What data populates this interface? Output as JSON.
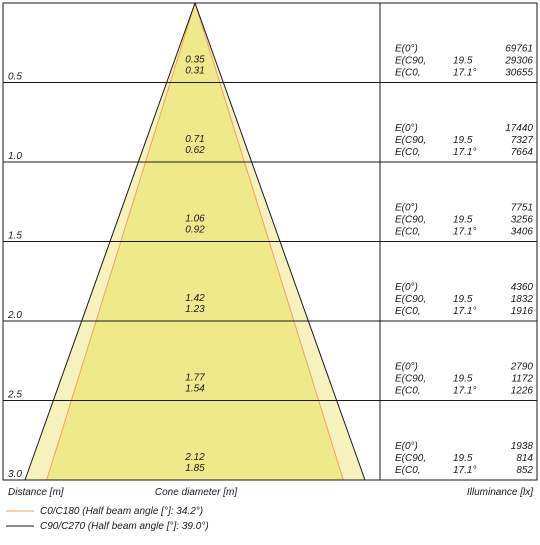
{
  "chart_data": {
    "type": "cone_diagram",
    "xlabel": "Distance [m]",
    "center_label": "Cone diameter [m]",
    "right_label": "Illuminance [lx]",
    "rows": [
      {
        "distance": "0.5",
        "diam_c90": "0.35",
        "diam_c0": "0.31",
        "e_axis": "E(0°)",
        "e_c90": "E(C90,",
        "e_c0": "E(C0,",
        "ang_c90": "19.5",
        "ang_c0": "17.1°",
        "lux_axis": "69761",
        "lux_c90": "29306",
        "lux_c0": "30655"
      },
      {
        "distance": "1.0",
        "diam_c90": "0.71",
        "diam_c0": "0.62",
        "e_axis": "E(0°)",
        "e_c90": "E(C90,",
        "e_c0": "E(C0,",
        "ang_c90": "19.5",
        "ang_c0": "17.1°",
        "lux_axis": "17440",
        "lux_c90": "7327",
        "lux_c0": "7664"
      },
      {
        "distance": "1.5",
        "diam_c90": "1.06",
        "diam_c0": "0.92",
        "e_axis": "E(0°)",
        "e_c90": "E(C90,",
        "e_c0": "E(C0,",
        "ang_c90": "19.5",
        "ang_c0": "17.1°",
        "lux_axis": "7751",
        "lux_c90": "3256",
        "lux_c0": "3406"
      },
      {
        "distance": "2.0",
        "diam_c90": "1.42",
        "diam_c0": "1.23",
        "e_axis": "E(0°)",
        "e_c90": "E(C90,",
        "e_c0": "E(C0,",
        "ang_c90": "19.5",
        "ang_c0": "17.1°",
        "lux_axis": "4360",
        "lux_c90": "1832",
        "lux_c0": "1916"
      },
      {
        "distance": "2.5",
        "diam_c90": "1.77",
        "diam_c0": "1.54",
        "e_axis": "E(0°)",
        "e_c90": "E(C90,",
        "e_c0": "E(C0,",
        "ang_c90": "19.5",
        "ang_c0": "17.1°",
        "lux_axis": "2790",
        "lux_c90": "1172",
        "lux_c0": "1226"
      },
      {
        "distance": "3.0",
        "diam_c90": "2.12",
        "diam_c0": "1.85",
        "e_axis": "E(0°)",
        "e_c90": "E(C90,",
        "e_c0": "E(C0,",
        "ang_c90": "19.5",
        "ang_c0": "17.1°",
        "lux_axis": "1938",
        "lux_c90": "814",
        "lux_c0": "852"
      }
    ],
    "legend": [
      {
        "label": "C0/C180 (Half beam angle [°]: 34.2°)",
        "color": "#f0a060"
      },
      {
        "label": "C90/C270 (Half beam angle [°]: 39.0°)",
        "color": "#1a1a1a"
      }
    ],
    "colors": {
      "outer_cone": "#f7f1be",
      "inner_cone": "#f0e98a",
      "grid": "#1a1a1a"
    }
  }
}
